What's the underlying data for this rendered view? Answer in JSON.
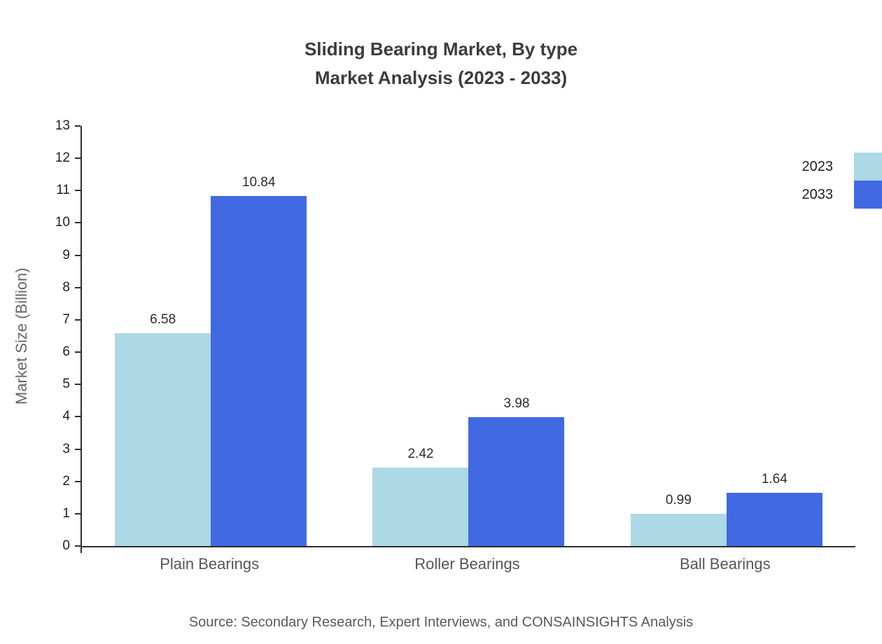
{
  "header": {
    "line1": "Sliding Bearing Market, By type",
    "line2": "Market Analysis (2023 - 2033)"
  },
  "source": "Source: Secondary Research, Expert Interviews, and CONSAINSIGHTS Analysis",
  "chart_data": {
    "type": "bar",
    "title": "Sliding Bearing Market, By type — Market Analysis (2023 - 2033)",
    "categories": [
      "Plain Bearings",
      "Roller Bearings",
      "Ball Bearings"
    ],
    "series": [
      {
        "name": "2023",
        "color": "#ADD8E6",
        "values": [
          6.58,
          2.42,
          0.99
        ]
      },
      {
        "name": "2033",
        "color": "#4169E1",
        "values": [
          10.84,
          3.98,
          1.64
        ]
      }
    ],
    "xlabel": "",
    "ylabel": "Market Size (Billion)",
    "ylim": [
      0,
      13
    ],
    "ytick_step": 1,
    "grid": false,
    "legend_position": "top-right",
    "value_label_decimals": 2
  }
}
